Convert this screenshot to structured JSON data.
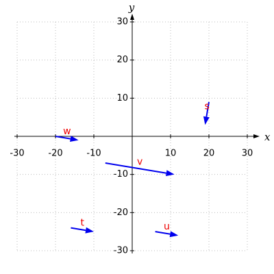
{
  "chart_data": {
    "type": "vector",
    "x_label": "x",
    "y_label": "y",
    "xlim": [
      -30,
      30
    ],
    "ylim": [
      -30,
      30
    ],
    "xticks": [
      -30,
      -20,
      -10,
      10,
      20,
      30
    ],
    "yticks": [
      -30,
      -20,
      -10,
      10,
      20,
      30
    ],
    "grid": true,
    "color": "#0000ee",
    "label_color": "#ee0000",
    "vectors": [
      {
        "name": "s",
        "x": [
          20,
          19
        ],
        "y": [
          9,
          3
        ]
      },
      {
        "name": "w",
        "x": [
          -20,
          -14
        ],
        "y": [
          0,
          -1
        ]
      },
      {
        "name": "v",
        "x": [
          -7,
          11
        ],
        "y": [
          -7,
          -10
        ]
      },
      {
        "name": "t",
        "x": [
          -16,
          -10
        ],
        "y": [
          -24,
          -25
        ]
      },
      {
        "name": "u",
        "x": [
          6,
          12
        ],
        "y": [
          -25,
          -26
        ]
      }
    ]
  }
}
